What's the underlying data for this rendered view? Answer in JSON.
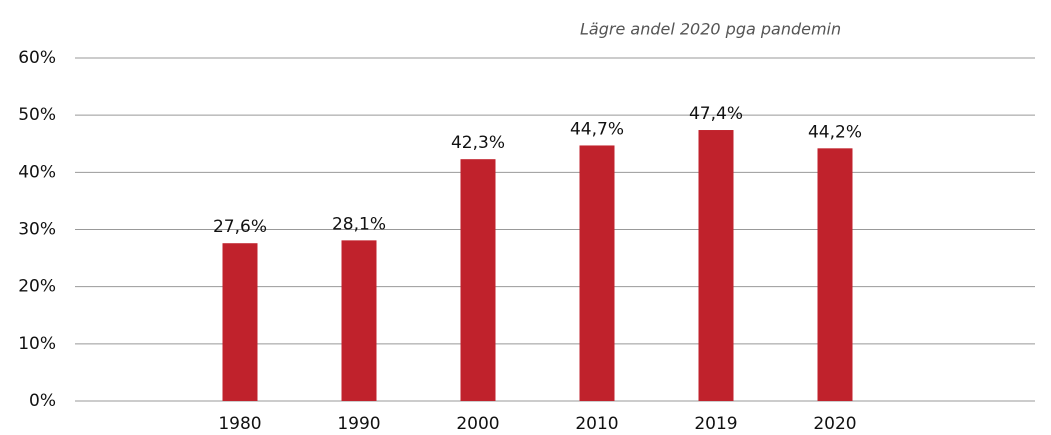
{
  "chart_data": {
    "type": "bar",
    "annotation": "Lägre andel 2020 pga pandemin",
    "categories": [
      "1980",
      "1990",
      "2000",
      "2010",
      "2019",
      "2020"
    ],
    "values": [
      27.6,
      28.1,
      42.3,
      44.7,
      47.4,
      44.2
    ],
    "value_labels": [
      "27,6%",
      "28,1%",
      "42,3%",
      "44,7%",
      "47,4%",
      "44,2%"
    ],
    "color": "#c0222c",
    "ylim": [
      0,
      60
    ],
    "yticks": [
      {
        "value": 0,
        "label": "0%"
      },
      {
        "value": 10,
        "label": "10%"
      },
      {
        "value": 20,
        "label": "20%"
      },
      {
        "value": 30,
        "label": "30%"
      },
      {
        "value": 40,
        "label": "40%"
      },
      {
        "value": 50,
        "label": "50%"
      },
      {
        "value": 60,
        "label": "60%"
      }
    ],
    "grid": true
  }
}
